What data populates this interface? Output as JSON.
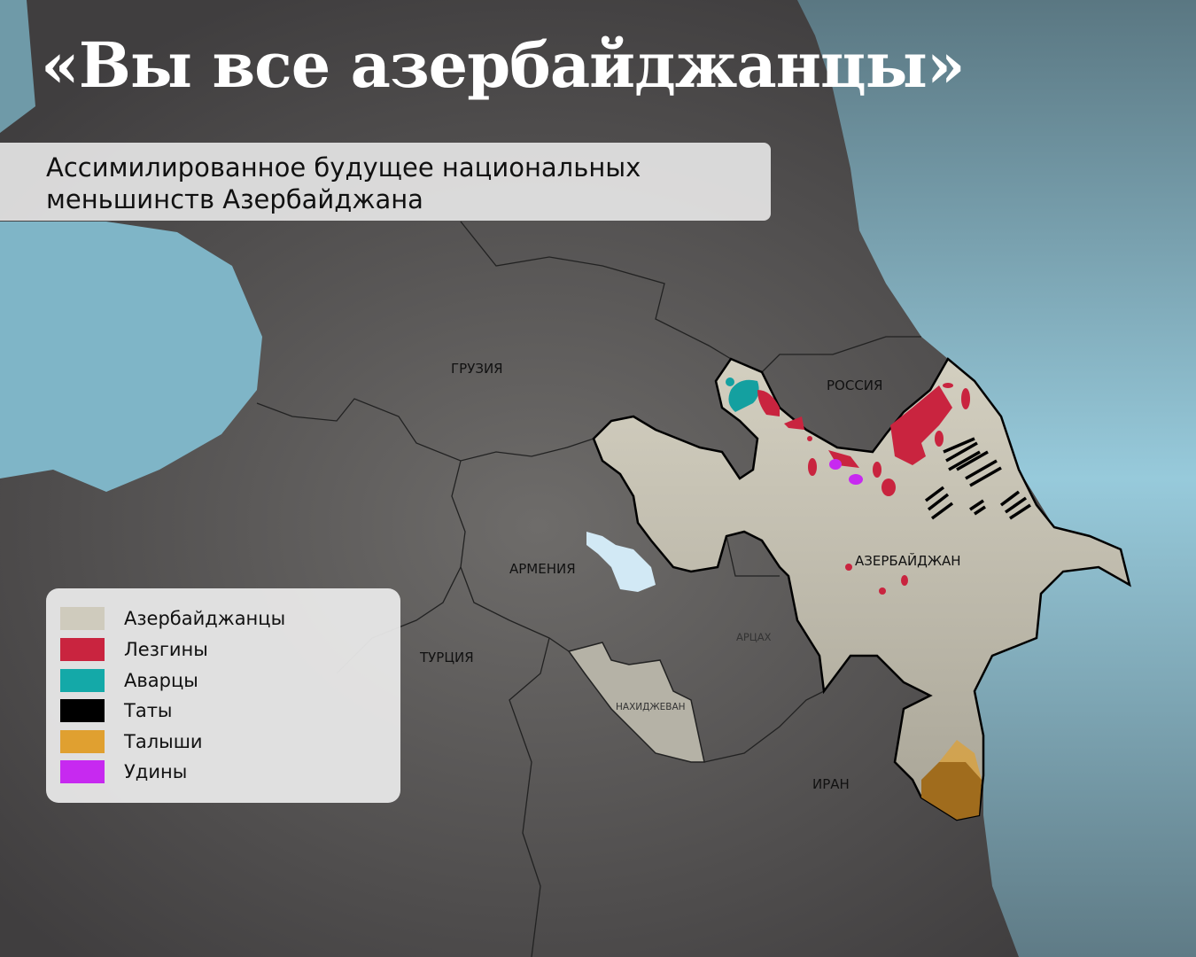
{
  "title": "«Вы все азербайджанцы»",
  "subtitle": {
    "line1": "Ассимилированное будущее национальных",
    "line2": "меньшинств Азербайджана"
  },
  "labels": {
    "georgia": "ГРУЗИЯ",
    "russia": "РОССИЯ",
    "armenia": "АРМЕНИЯ",
    "azerbaijan": "АЗЕРБАЙДЖАН",
    "artsakh": "АРЦАХ",
    "turkey": "ТУРЦИЯ",
    "nakhchivan": "НАХИДЖЕВАН",
    "iran": "ИРАН"
  },
  "legend": [
    {
      "label": "Азербайджанцы",
      "color": "#cfcbbd"
    },
    {
      "label": "Лезгины",
      "color": "#c9243f"
    },
    {
      "label": "Аварцы",
      "color": "#14a9a8"
    },
    {
      "label": "Таты",
      "color": "#000000"
    },
    {
      "label": "Талыши",
      "color": "#e0a030"
    },
    {
      "label": "Удины",
      "color": "#c729f0"
    }
  ],
  "colors": {
    "sea": "#8fc3d4",
    "land": "#555555",
    "lake": "#d2e9f5"
  }
}
